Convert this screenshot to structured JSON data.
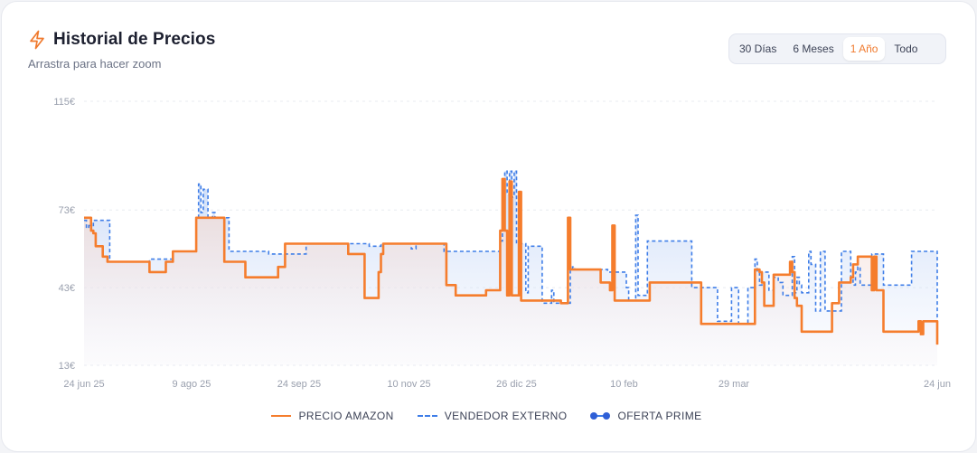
{
  "header": {
    "title": "Historial de Precios",
    "subtitle": "Arrastra para hacer zoom"
  },
  "range_buttons": [
    {
      "label": "30 Días",
      "active": false
    },
    {
      "label": "6 Meses",
      "active": false
    },
    {
      "label": "1 Año",
      "active": true
    },
    {
      "label": "Todo",
      "active": false
    }
  ],
  "colors": {
    "amazon": "#f57d2d",
    "external": "#3f7ee8",
    "prime": "#2f5fd6",
    "accent": "#f07a2e"
  },
  "chart_data": {
    "type": "line",
    "title": "Historial de Precios",
    "x_type": "date",
    "x_range": [
      "2025-06-24",
      "2026-06-24"
    ],
    "ylim": [
      13,
      115
    ],
    "y_ticks": [
      13,
      43,
      73,
      115
    ],
    "y_tick_labels": [
      "13€",
      "43€",
      "73€",
      "115€"
    ],
    "x_ticks": [
      {
        "date": "2025-06-24",
        "label": "24 jun 25"
      },
      {
        "date": "2025-08-09",
        "label": "9 ago 25"
      },
      {
        "date": "2025-09-24",
        "label": "24 sep 25"
      },
      {
        "date": "2025-11-10",
        "label": "10 nov 25"
      },
      {
        "date": "2025-12-26",
        "label": "26 dic 25"
      },
      {
        "date": "2026-02-10",
        "label": "10 feb"
      },
      {
        "date": "2026-03-29",
        "label": "29 mar"
      },
      {
        "date": "2026-06-24",
        "label": "24 jun"
      }
    ],
    "grid": true,
    "legend_position": "bottom",
    "series": [
      {
        "name": "PRECIO AMAZON",
        "step": true,
        "points": [
          [
            "2025-06-24",
            70
          ],
          [
            "2025-06-26",
            70
          ],
          [
            "2025-06-27",
            65
          ],
          [
            "2025-06-28",
            64
          ],
          [
            "2025-06-29",
            59
          ],
          [
            "2025-07-01",
            59
          ],
          [
            "2025-07-02",
            55
          ],
          [
            "2025-07-04",
            53
          ],
          [
            "2025-07-21",
            53
          ],
          [
            "2025-07-22",
            49
          ],
          [
            "2025-07-28",
            49
          ],
          [
            "2025-07-29",
            53
          ],
          [
            "2025-07-31",
            53
          ],
          [
            "2025-08-01",
            57
          ],
          [
            "2025-08-10",
            57
          ],
          [
            "2025-08-11",
            70
          ],
          [
            "2025-08-14",
            70
          ],
          [
            "2025-08-15",
            70
          ],
          [
            "2025-08-22",
            70
          ],
          [
            "2025-08-23",
            53
          ],
          [
            "2025-08-31",
            53
          ],
          [
            "2025-09-01",
            47
          ],
          [
            "2025-09-14",
            47
          ],
          [
            "2025-09-15",
            51
          ],
          [
            "2025-09-17",
            51
          ],
          [
            "2025-09-18",
            60
          ],
          [
            "2025-10-14",
            60
          ],
          [
            "2025-10-15",
            56
          ],
          [
            "2025-10-21",
            56
          ],
          [
            "2025-10-22",
            39
          ],
          [
            "2025-10-26",
            39
          ],
          [
            "2025-10-27",
            39
          ],
          [
            "2025-10-28",
            49
          ],
          [
            "2025-10-29",
            56
          ],
          [
            "2025-10-30",
            60
          ],
          [
            "2025-11-25",
            60
          ],
          [
            "2025-11-26",
            44
          ],
          [
            "2025-11-29",
            44
          ],
          [
            "2025-11-30",
            40
          ],
          [
            "2025-12-12",
            40
          ],
          [
            "2025-12-13",
            42
          ],
          [
            "2025-12-18",
            42
          ],
          [
            "2025-12-19",
            65
          ],
          [
            "2025-12-20",
            85
          ],
          [
            "2025-12-21",
            65
          ],
          [
            "2025-12-22",
            40
          ],
          [
            "2025-12-23",
            84
          ],
          [
            "2025-12-24",
            40
          ],
          [
            "2025-12-25",
            40
          ],
          [
            "2025-12-26",
            40
          ],
          [
            "2025-12-27",
            80
          ],
          [
            "2025-12-28",
            38
          ],
          [
            "2026-01-04",
            38
          ],
          [
            "2026-01-06",
            38
          ],
          [
            "2026-01-13",
            38
          ],
          [
            "2026-01-14",
            37
          ],
          [
            "2026-01-16",
            37
          ],
          [
            "2026-01-17",
            70
          ],
          [
            "2026-01-18",
            50
          ],
          [
            "2026-01-30",
            50
          ],
          [
            "2026-01-31",
            45
          ],
          [
            "2026-02-03",
            45
          ],
          [
            "2026-02-04",
            42
          ],
          [
            "2026-02-05",
            67
          ],
          [
            "2026-02-06",
            38
          ],
          [
            "2026-02-20",
            38
          ],
          [
            "2026-02-21",
            45
          ],
          [
            "2026-03-14",
            45
          ],
          [
            "2026-03-15",
            29
          ],
          [
            "2026-04-06",
            29
          ],
          [
            "2026-04-07",
            50
          ],
          [
            "2026-04-09",
            49
          ],
          [
            "2026-04-10",
            45
          ],
          [
            "2026-04-11",
            36
          ],
          [
            "2026-04-14",
            36
          ],
          [
            "2026-04-15",
            48
          ],
          [
            "2026-04-21",
            48
          ],
          [
            "2026-04-22",
            53
          ],
          [
            "2026-04-23",
            49
          ],
          [
            "2026-04-24",
            39
          ],
          [
            "2026-04-25",
            36
          ],
          [
            "2026-04-27",
            26
          ],
          [
            "2026-05-09",
            26
          ],
          [
            "2026-05-10",
            37
          ],
          [
            "2026-05-12",
            37
          ],
          [
            "2026-05-13",
            45
          ],
          [
            "2026-05-17",
            45
          ],
          [
            "2026-05-18",
            47
          ],
          [
            "2026-05-19",
            52
          ],
          [
            "2026-05-21",
            55
          ],
          [
            "2026-05-26",
            55
          ],
          [
            "2026-05-27",
            42
          ],
          [
            "2026-05-28",
            55
          ],
          [
            "2026-05-29",
            42
          ],
          [
            "2026-05-31",
            42
          ],
          [
            "2026-06-01",
            26
          ],
          [
            "2026-06-15",
            26
          ],
          [
            "2026-06-16",
            30
          ],
          [
            "2026-06-17",
            25
          ],
          [
            "2026-06-18",
            30
          ],
          [
            "2026-06-23",
            30
          ],
          [
            "2026-06-24",
            21
          ]
        ]
      },
      {
        "name": "VENDEDOR EXTERNO",
        "step": true,
        "points": [
          [
            "2025-06-24",
            69
          ],
          [
            "2025-06-25",
            66
          ],
          [
            "2025-06-26",
            67
          ],
          [
            "2025-06-28",
            69
          ],
          [
            "2025-07-04",
            69
          ],
          [
            "2025-07-05",
            53
          ],
          [
            "2025-07-21",
            53
          ],
          [
            "2025-07-22",
            54
          ],
          [
            "2025-07-31",
            54
          ],
          [
            "2025-08-01",
            57
          ],
          [
            "2025-08-10",
            57
          ],
          [
            "2025-08-11",
            70
          ],
          [
            "2025-08-12",
            83
          ],
          [
            "2025-08-13",
            72
          ],
          [
            "2025-08-14",
            81
          ],
          [
            "2025-08-16",
            70
          ],
          [
            "2025-08-18",
            72
          ],
          [
            "2025-08-19",
            70
          ],
          [
            "2025-08-24",
            70
          ],
          [
            "2025-08-25",
            57
          ],
          [
            "2025-09-10",
            57
          ],
          [
            "2025-09-11",
            56
          ],
          [
            "2025-09-26",
            56
          ],
          [
            "2025-09-27",
            60
          ],
          [
            "2025-10-15",
            60
          ],
          [
            "2025-10-16",
            60
          ],
          [
            "2025-10-23",
            60
          ],
          [
            "2025-10-24",
            59
          ],
          [
            "2025-10-28",
            59
          ],
          [
            "2025-10-29",
            60
          ],
          [
            "2025-11-10",
            60
          ],
          [
            "2025-11-11",
            58
          ],
          [
            "2025-11-13",
            60
          ],
          [
            "2025-11-24",
            60
          ],
          [
            "2025-11-25",
            57
          ],
          [
            "2025-12-18",
            57
          ],
          [
            "2025-12-19",
            61
          ],
          [
            "2025-12-20",
            65
          ],
          [
            "2025-12-21",
            88
          ],
          [
            "2025-12-22",
            79
          ],
          [
            "2025-12-23",
            88
          ],
          [
            "2025-12-24",
            78
          ],
          [
            "2025-12-25",
            88
          ],
          [
            "2025-12-26",
            60
          ],
          [
            "2025-12-29",
            60
          ],
          [
            "2025-12-30",
            41
          ],
          [
            "2025-12-31",
            59
          ],
          [
            "2026-01-01",
            59
          ],
          [
            "2026-01-02",
            59
          ],
          [
            "2026-01-05",
            59
          ],
          [
            "2026-01-06",
            37
          ],
          [
            "2026-01-09",
            37
          ],
          [
            "2026-01-10",
            42
          ],
          [
            "2026-01-11",
            37
          ],
          [
            "2026-01-17",
            37
          ],
          [
            "2026-01-18",
            50
          ],
          [
            "2026-01-19",
            51
          ],
          [
            "2026-01-20",
            50
          ],
          [
            "2026-02-02",
            50
          ],
          [
            "2026-02-03",
            49
          ],
          [
            "2026-02-10",
            49
          ],
          [
            "2026-02-11",
            43
          ],
          [
            "2026-02-12",
            38
          ],
          [
            "2026-02-14",
            38
          ],
          [
            "2026-02-15",
            71
          ],
          [
            "2026-02-16",
            40
          ],
          [
            "2026-02-19",
            40
          ],
          [
            "2026-02-20",
            61
          ],
          [
            "2026-03-10",
            61
          ],
          [
            "2026-03-11",
            43
          ],
          [
            "2026-03-21",
            43
          ],
          [
            "2026-03-22",
            30
          ],
          [
            "2026-03-27",
            30
          ],
          [
            "2026-03-28",
            43
          ],
          [
            "2026-03-30",
            43
          ],
          [
            "2026-03-31",
            29
          ],
          [
            "2026-04-03",
            29
          ],
          [
            "2026-04-04",
            43
          ],
          [
            "2026-04-06",
            43
          ],
          [
            "2026-04-07",
            54
          ],
          [
            "2026-04-08",
            49
          ],
          [
            "2026-04-09",
            44
          ],
          [
            "2026-04-10",
            49
          ],
          [
            "2026-04-13",
            42
          ],
          [
            "2026-04-15",
            47
          ],
          [
            "2026-04-17",
            45
          ],
          [
            "2026-04-19",
            40
          ],
          [
            "2026-04-23",
            55
          ],
          [
            "2026-04-24",
            41
          ],
          [
            "2026-04-25",
            47
          ],
          [
            "2026-04-26",
            44
          ],
          [
            "2026-04-27",
            41
          ],
          [
            "2026-04-29",
            41
          ],
          [
            "2026-04-30",
            57
          ],
          [
            "2026-05-01",
            52
          ],
          [
            "2026-05-03",
            34
          ],
          [
            "2026-05-05",
            57
          ],
          [
            "2026-05-06",
            57
          ],
          [
            "2026-05-07",
            34
          ],
          [
            "2026-05-13",
            34
          ],
          [
            "2026-05-14",
            57
          ],
          [
            "2026-05-17",
            57
          ],
          [
            "2026-05-18",
            46
          ],
          [
            "2026-05-19",
            44
          ],
          [
            "2026-05-20",
            49
          ],
          [
            "2026-05-21",
            51
          ],
          [
            "2026-05-22",
            44
          ],
          [
            "2026-05-26",
            44
          ],
          [
            "2026-05-27",
            56
          ],
          [
            "2026-05-31",
            56
          ],
          [
            "2026-06-01",
            44
          ],
          [
            "2026-06-12",
            44
          ],
          [
            "2026-06-13",
            57
          ],
          [
            "2026-06-23",
            57
          ],
          [
            "2026-06-24",
            21
          ]
        ]
      }
    ],
    "legend": [
      {
        "label": "PRECIO AMAZON",
        "style": "solid"
      },
      {
        "label": "VENDEDOR EXTERNO",
        "style": "dashed"
      },
      {
        "label": "OFERTA PRIME",
        "style": "dots"
      }
    ]
  }
}
